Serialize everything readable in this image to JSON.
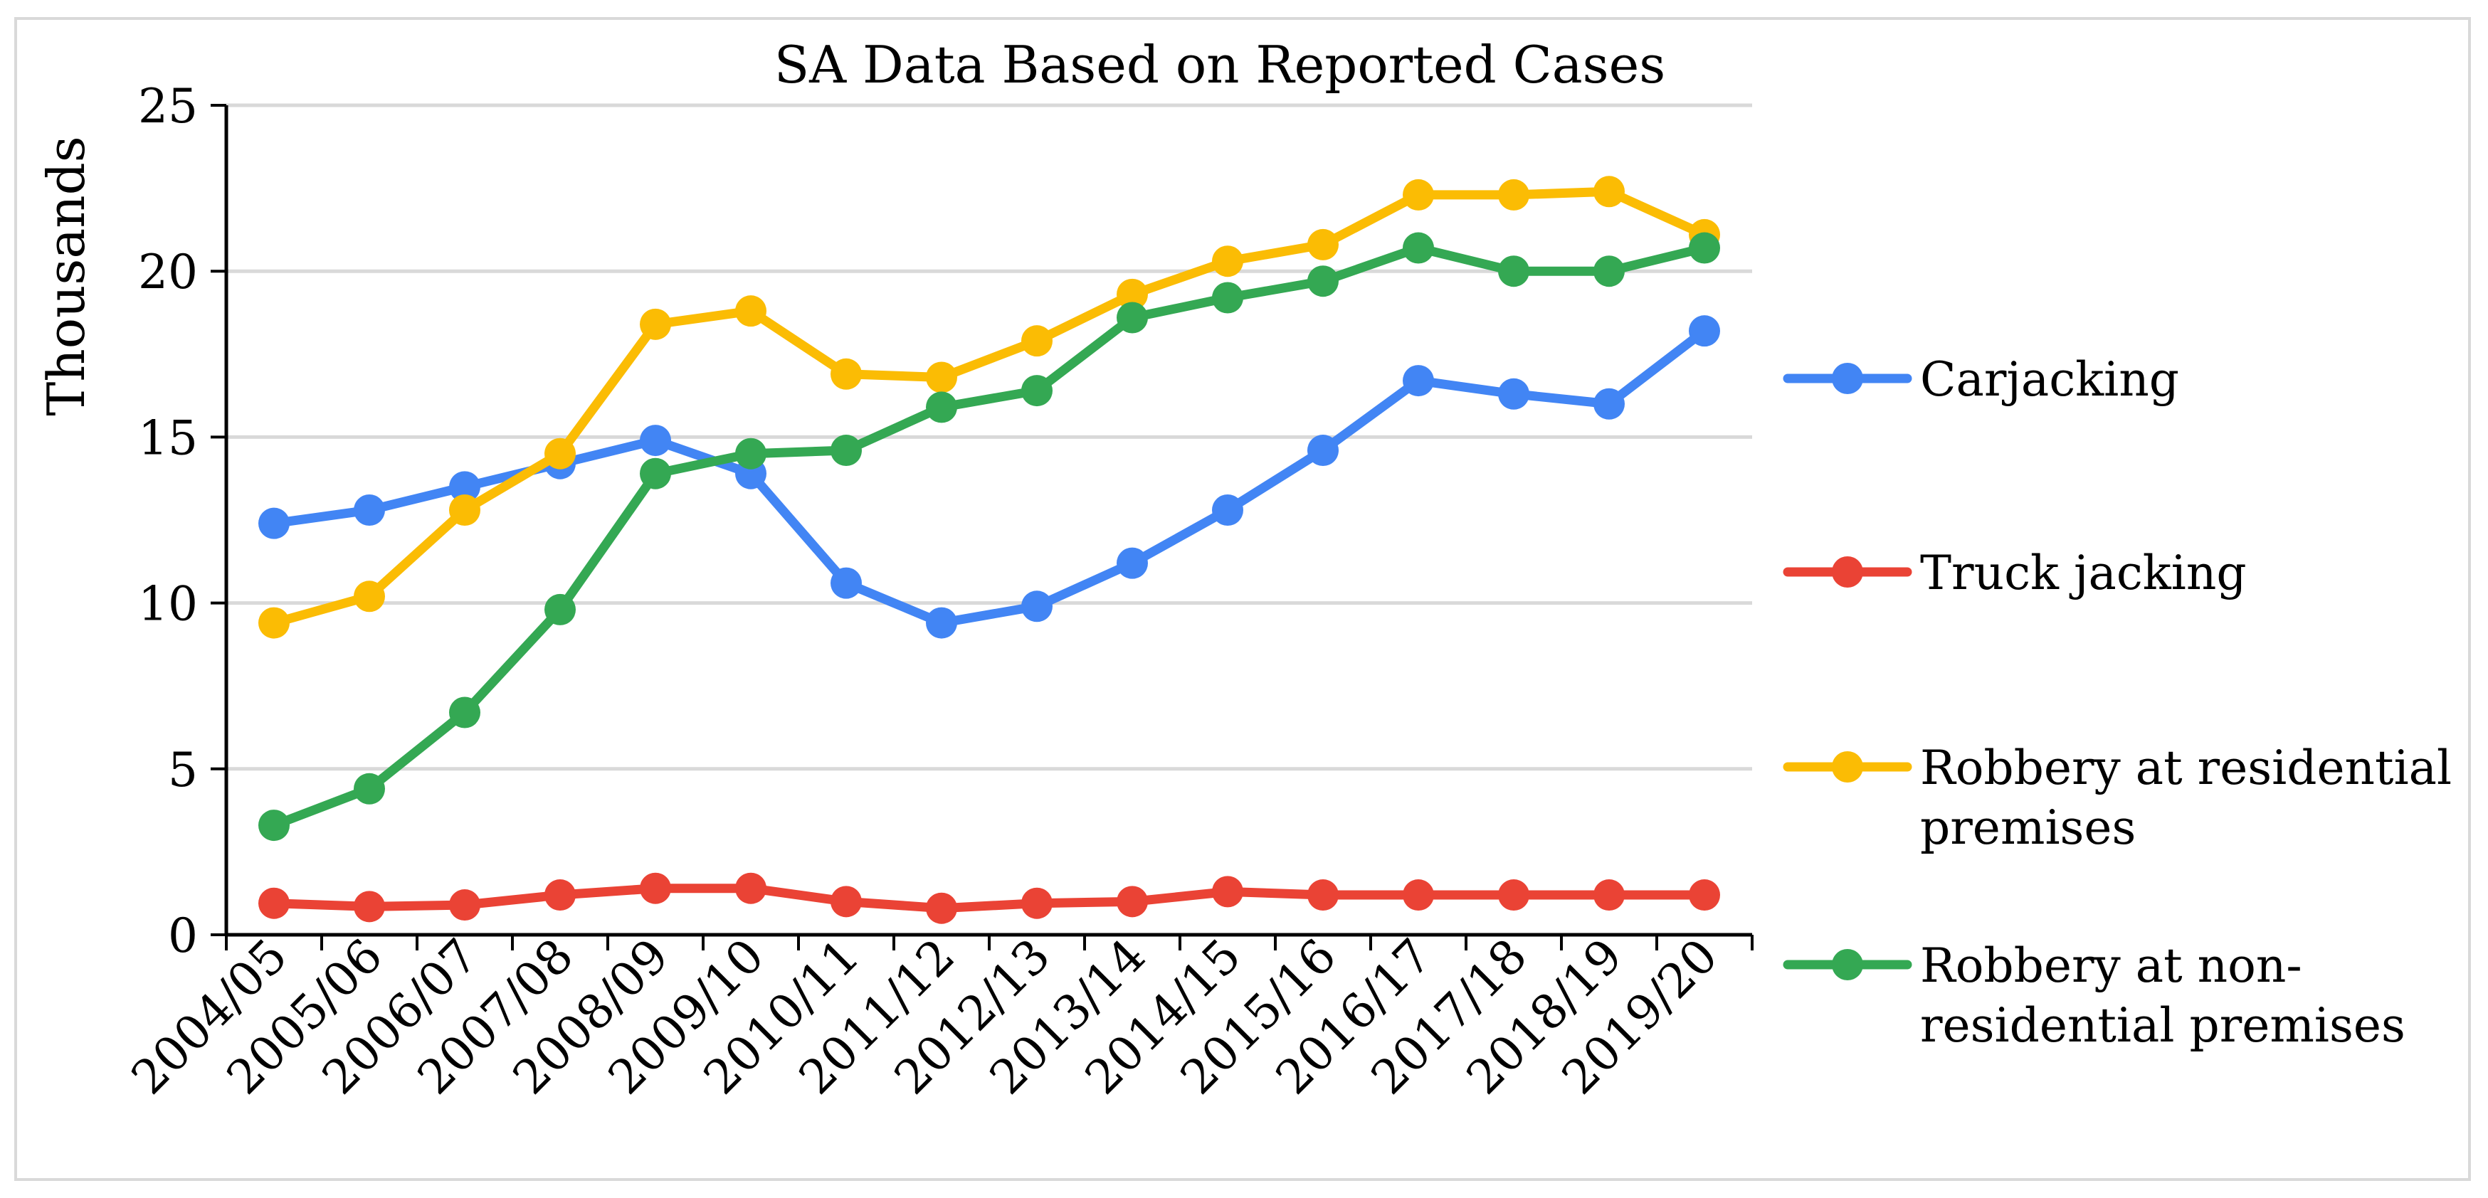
{
  "chart_data": {
    "type": "line",
    "title": "SA Data Based on Reported Cases",
    "xlabel": "",
    "ylabel": "Thousands",
    "ylim": [
      0,
      25
    ],
    "yticks": [
      0,
      5,
      10,
      15,
      20,
      25
    ],
    "grid": true,
    "legend_position": "right",
    "categories": [
      "2004/05",
      "2005/06",
      "2006/07",
      "2007/08",
      "2008/09",
      "2009/10",
      "2010/11",
      "2011/12",
      "2012/13",
      "2013/14",
      "2014/15",
      "2015/16",
      "2016/17",
      "2017/18",
      "2018/19",
      "2019/20"
    ],
    "series": [
      {
        "name": "Carjacking",
        "legend_lines": [
          "Carjacking"
        ],
        "color": "#4285f4",
        "values": [
          12.4,
          12.8,
          13.5,
          14.2,
          14.9,
          13.9,
          10.6,
          9.4,
          9.9,
          11.2,
          12.8,
          14.6,
          16.7,
          16.3,
          16.0,
          18.2
        ]
      },
      {
        "name": "Truck jacking",
        "legend_lines": [
          "Truck jacking"
        ],
        "color": "#ea4335",
        "values": [
          0.95,
          0.85,
          0.9,
          1.2,
          1.4,
          1.4,
          1.0,
          0.8,
          0.95,
          1.0,
          1.3,
          1.2,
          1.2,
          1.2,
          1.2,
          1.2
        ]
      },
      {
        "name": "Robbery at residential premises",
        "legend_lines": [
          "Robbery at residential",
          "premises"
        ],
        "color": "#fbbc04",
        "values": [
          9.4,
          10.2,
          12.8,
          14.5,
          18.4,
          18.8,
          16.9,
          16.8,
          17.9,
          19.3,
          20.3,
          20.8,
          22.3,
          22.3,
          22.4,
          21.1
        ]
      },
      {
        "name": "Robbery at non-residential premises",
        "legend_lines": [
          "Robbery at non-",
          "residential premises"
        ],
        "color": "#34a853",
        "values": [
          3.3,
          4.4,
          6.7,
          9.8,
          13.9,
          14.5,
          14.6,
          15.9,
          16.4,
          18.6,
          19.2,
          19.7,
          20.7,
          20.0,
          20.0,
          20.7
        ]
      }
    ]
  }
}
